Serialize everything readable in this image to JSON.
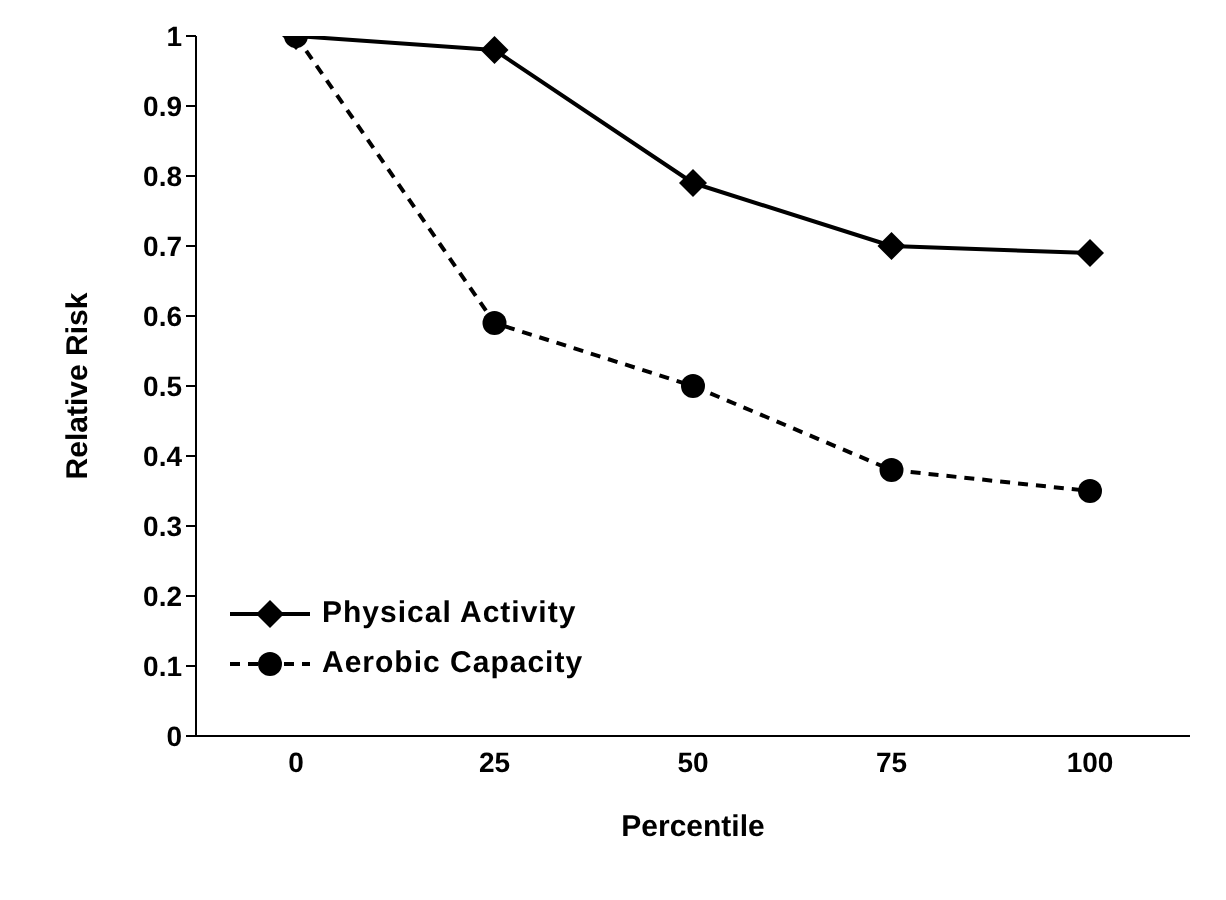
{
  "chart_data": {
    "type": "line",
    "xlabel": "Percentile",
    "ylabel": "Relative Risk",
    "categories": [
      "0",
      "25",
      "50",
      "75",
      "100"
    ],
    "series": [
      {
        "name": "Physical Activity",
        "color": "#000000",
        "marker": "diamond",
        "line_style": "solid",
        "values": [
          1,
          0.98,
          0.79,
          0.7,
          0.69
        ]
      },
      {
        "name": "Aerobic Capacity",
        "color": "#000000",
        "marker": "circle",
        "line_style": "dashed",
        "values": [
          1,
          0.59,
          0.5,
          0.38,
          0.35
        ]
      }
    ],
    "ylim": [
      0,
      1
    ],
    "yticks": [
      0,
      0.1,
      0.2,
      0.3,
      0.4,
      0.5,
      0.6,
      0.7,
      0.8,
      0.9,
      1
    ],
    "grid": false,
    "legend": "bottom left"
  }
}
